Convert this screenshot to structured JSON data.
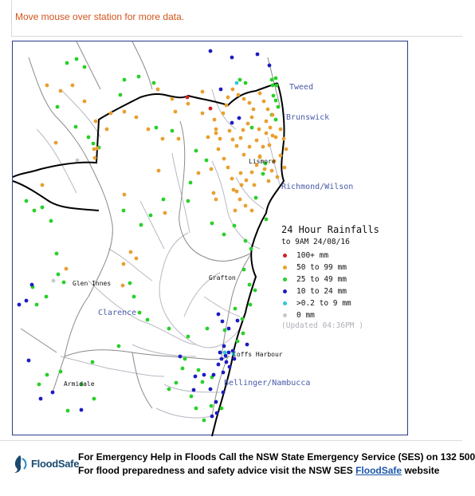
{
  "hint": "Move mouse over station for more data.",
  "colors": {
    "100_plus": "#d02020",
    "50_99": "#e8a030",
    "25_49": "#28d028",
    "10_24": "#1c1cc0",
    "0_2_9": "#30c8d8",
    "zero": "#c8c8c8"
  },
  "regions": {
    "tweed": "Tweed",
    "brunswick": "Brunswick",
    "richmond": "Richmond/Wilson",
    "clarence": "Clarence",
    "bellinger": "Bellinger/Nambucca"
  },
  "towns": {
    "lismore": "Lismore",
    "glen_innes": "Glen Innes",
    "grafton": "Grafton",
    "coffs": "Coffs Harbour",
    "armidale": "Armidale"
  },
  "legend": {
    "title": "24 Hour Rainfalls",
    "subtitle": "to 9AM 24/08/16",
    "items": [
      {
        "label": "100+ mm",
        "color_key": "100_plus"
      },
      {
        "label": "50  to 99 mm",
        "color_key": "50_99"
      },
      {
        "label": "25  to 49 mm",
        "color_key": "25_49"
      },
      {
        "label": "10  to 24 mm",
        "color_key": "10_24"
      },
      {
        "label": ">0.2 to 9 mm",
        "color_key": "0_2_9"
      },
      {
        "label": "0 mm",
        "color_key": "zero"
      }
    ],
    "updated": "(Updated 04:36PM  )"
  },
  "footer": {
    "logo": "FloodSafe",
    "line1": "For Emergency Help in Floods Call the NSW State Emergency Service (SES) on 132 500",
    "line2_prefix": "For flood preparedness and safety advice visit the NSW SES ",
    "line2_link": "FloodSafe",
    "line2_suffix": " website"
  }
}
